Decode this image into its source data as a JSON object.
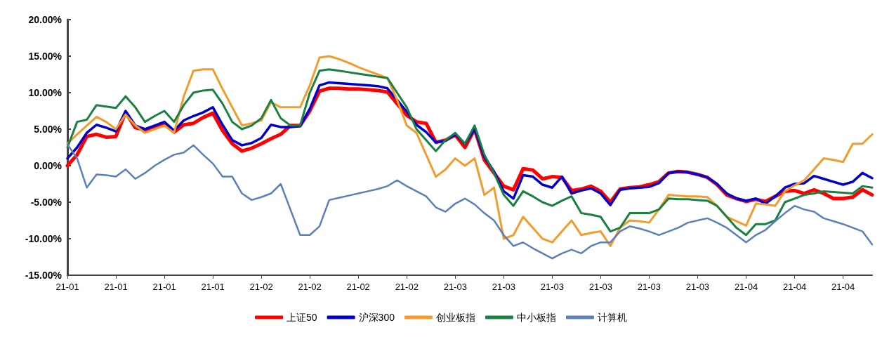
{
  "chart_data": {
    "type": "line",
    "categories": [
      "21-01",
      null,
      null,
      null,
      null,
      "21-01",
      null,
      null,
      null,
      null,
      "21-01",
      null,
      null,
      null,
      null,
      "21-01",
      null,
      null,
      null,
      null,
      "21-02",
      null,
      null,
      null,
      null,
      "21-02",
      null,
      null,
      null,
      null,
      "21-02",
      null,
      null,
      null,
      null,
      "21-02",
      null,
      null,
      null,
      null,
      "21-03",
      null,
      null,
      null,
      null,
      "21-03",
      null,
      null,
      null,
      null,
      "21-03",
      null,
      null,
      null,
      null,
      "21-03",
      null,
      null,
      null,
      null,
      "21-03",
      null,
      null,
      null,
      null,
      "21-03",
      null,
      null,
      null,
      null,
      "21-04",
      null,
      null,
      null,
      null,
      "21-04",
      null,
      null,
      null,
      null,
      "21-04",
      null,
      null,
      null
    ],
    "series": [
      {
        "name": "上证50",
        "color": "#ff0000",
        "values": [
          0,
          1.5,
          4,
          4.3,
          3.9,
          4,
          7.3,
          5.2,
          4.9,
          5.3,
          5.8,
          4.6,
          5.6,
          5.8,
          6.6,
          7.2,
          4.8,
          3,
          2,
          2.4,
          3,
          3.7,
          4.3,
          5.5,
          5.5,
          7.5,
          10.2,
          10.6,
          10.6,
          10.5,
          10.5,
          10.4,
          10.3,
          10.1,
          8.5,
          6.9,
          6,
          5.8,
          3.2,
          3.5,
          4.2,
          2.5,
          5,
          0.8,
          -1,
          -2.8,
          -3.3,
          -0.4,
          -0.6,
          -1.8,
          -1.5,
          -1.6,
          -3.4,
          -3.2,
          -2.8,
          -3.5,
          -5,
          -3.2,
          -3,
          -2.9,
          -2.6,
          -2.2,
          -1,
          -0.8,
          -0.9,
          -1.2,
          -1.6,
          -2.6,
          -4,
          -4.5,
          -4.9,
          -4.6,
          -4.9,
          -4.2,
          -3.5,
          -3.4,
          -3.8,
          -3.3,
          -3.8,
          -4.5,
          -4.5,
          -4.3,
          -3.3,
          -4
        ]
      },
      {
        "name": "沪深300",
        "color": "#0000cc",
        "values": [
          1,
          2.5,
          4.5,
          5.6,
          5.2,
          4.7,
          7.5,
          5.5,
          5,
          5.5,
          6,
          4.8,
          6.2,
          6.8,
          7.3,
          8,
          5.6,
          3.5,
          2.8,
          3.1,
          3.8,
          5.6,
          5.3,
          5.3,
          5.4,
          7.8,
          11,
          11.4,
          11.3,
          11.2,
          11.1,
          11,
          10.9,
          10.6,
          9,
          7.4,
          5.6,
          4.6,
          3.2,
          3.4,
          4.3,
          3,
          5,
          1.2,
          -0.8,
          -3.5,
          -4.5,
          -1.3,
          -1.5,
          -2.6,
          -3,
          -1.5,
          -3.8,
          -3.4,
          -3.1,
          -3.8,
          -5.4,
          -3.3,
          -3.1,
          -3,
          -2.9,
          -2.4,
          -1,
          -0.8,
          -0.9,
          -1.2,
          -1.6,
          -2.5,
          -3.8,
          -4.5,
          -4.8,
          -4.5,
          -5.2,
          -4.2,
          -3,
          -2.5,
          -2.4,
          -1.4,
          -1.8,
          -2.2,
          -2.6,
          -2.2,
          -1,
          -1.7
        ]
      },
      {
        "name": "创业板指",
        "color": "#f39c2c",
        "values": [
          3,
          4.3,
          5.5,
          6.7,
          6,
          5,
          7,
          5.5,
          4.5,
          5,
          5.5,
          4.5,
          9.5,
          13,
          13.2,
          13.2,
          10.5,
          8,
          5.5,
          5.8,
          6.2,
          8.7,
          8,
          8,
          8,
          11,
          14.8,
          15,
          14.6,
          14.1,
          13.5,
          13,
          12.5,
          12,
          9,
          5.5,
          4.5,
          1.5,
          -1.5,
          -0.5,
          1,
          0,
          1,
          -4,
          -3,
          -10,
          -9.5,
          -7,
          -8.5,
          -10,
          -10.5,
          -9,
          -7.5,
          -9.5,
          -9.2,
          -9,
          -11,
          -8.5,
          -7.5,
          -7.6,
          -7.8,
          -6,
          -4,
          -4.1,
          -4.2,
          -4.2,
          -4.3,
          -5.5,
          -7,
          -7.6,
          -8.2,
          -5.2,
          -5.3,
          -5.5,
          -3.5,
          -2.7,
          -2,
          -0.5,
          1,
          0.8,
          0.5,
          3,
          3,
          4.3
        ]
      },
      {
        "name": "中小板指",
        "color": "#1a8040",
        "values": [
          2.5,
          6,
          6.3,
          8.3,
          8.1,
          7.9,
          9.5,
          8,
          6,
          6.8,
          7.5,
          6,
          8.3,
          10,
          10.3,
          10.4,
          8.5,
          6,
          5,
          5.5,
          6.5,
          9,
          6.5,
          5.5,
          5.5,
          10,
          13,
          13.2,
          13,
          12.8,
          12.6,
          12.4,
          12.2,
          12,
          10,
          8,
          5,
          3.5,
          2,
          3.5,
          4.5,
          3,
          5.5,
          1.5,
          -1,
          -4,
          -5.5,
          -3.5,
          -4.2,
          -5,
          -5.5,
          -4.8,
          -4.2,
          -6.5,
          -6.7,
          -7,
          -9,
          -8.5,
          -6.5,
          -6.5,
          -6.5,
          -6,
          -4.5,
          -4.6,
          -4.6,
          -4.7,
          -4.8,
          -5.5,
          -7,
          -8.5,
          -9.5,
          -8,
          -8,
          -7.5,
          -5,
          -4.5,
          -4,
          -3.8,
          -3.5,
          -3.6,
          -3.7,
          -3.8,
          -2.8,
          -3
        ]
      },
      {
        "name": "计算机",
        "color": "#5b7fbd",
        "values": [
          2.9,
          1,
          -3,
          -1.2,
          -1.3,
          -1.5,
          -0.5,
          -1.8,
          -1,
          0,
          0.8,
          1.5,
          1.8,
          2.8,
          1.5,
          0.3,
          -1.5,
          -1.5,
          -3.8,
          -4.7,
          -4.3,
          -3.8,
          -2.5,
          -6,
          -9.5,
          -9.5,
          -8.3,
          -4.7,
          -4.4,
          -4.1,
          -3.8,
          -3.5,
          -3.2,
          -2.8,
          -2,
          -2.8,
          -3.5,
          -4.2,
          -5.7,
          -6.3,
          -5.2,
          -4.5,
          -5.3,
          -6.5,
          -7.5,
          -9.5,
          -11,
          -10.5,
          -11.3,
          -12,
          -12.7,
          -12,
          -11.5,
          -12,
          -11,
          -10.5,
          -10.5,
          -9,
          -8.3,
          -8.6,
          -9,
          -9.5,
          -9,
          -8.5,
          -7.8,
          -7.5,
          -7.2,
          -7.8,
          -8.5,
          -9.5,
          -10.5,
          -9.5,
          -8.8,
          -7.6,
          -6.5,
          -5.5,
          -6,
          -6.3,
          -7.2,
          -7.6,
          -8,
          -8.5,
          -9,
          -10.8
        ]
      }
    ],
    "ylim": [
      -15,
      20
    ],
    "yticks": [
      {
        "value": -15,
        "label": "-15.00%"
      },
      {
        "value": -10,
        "label": "-10.00%"
      },
      {
        "value": -5,
        "label": "-5.00%"
      },
      {
        "value": 0,
        "label": "0.00%"
      },
      {
        "value": 5,
        "label": "5.00%"
      },
      {
        "value": 10,
        "label": "10.00%"
      },
      {
        "value": 15,
        "label": "15.00%"
      },
      {
        "value": 20,
        "label": "20.00%"
      }
    ],
    "grid": false,
    "legend": "bottom",
    "marker": "none",
    "line_style": "solid"
  }
}
